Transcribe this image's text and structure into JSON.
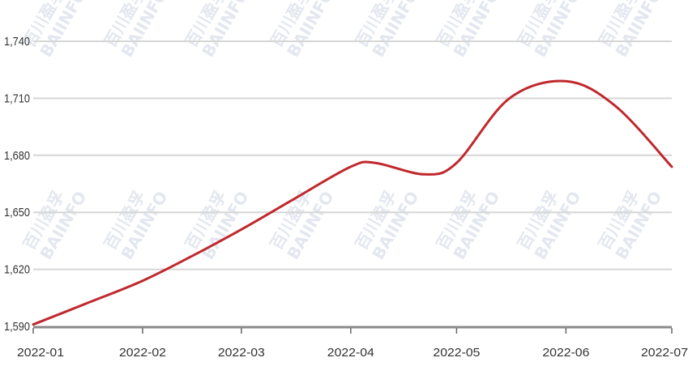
{
  "chart_data": {
    "type": "line",
    "title": "",
    "xlabel": "",
    "ylabel": "",
    "x_ticks": [
      "2022-01",
      "2022-02",
      "2022-03",
      "2022-04",
      "2022-05",
      "2022-06",
      "2022-07"
    ],
    "y_ticks": [
      1590,
      1620,
      1650,
      1680,
      1710,
      1740
    ],
    "y_tick_labels": [
      "1,590",
      "1,620",
      "1,650",
      "1,680",
      "1,710",
      "1,740"
    ],
    "ylim": [
      1590,
      1740
    ],
    "xlim": [
      "2022-01",
      "2022-07"
    ],
    "grid": "horizontal",
    "legend": "none",
    "series": [
      {
        "color": "#c0282d",
        "x": [
          "2022-01",
          "2022-01-16",
          "2022-02",
          "2022-02-15",
          "2022-03",
          "2022-03-15",
          "2022-04",
          "2022-04-08",
          "2022-04-22",
          "2022-05",
          "2022-05-16",
          "2022-06",
          "2022-06-15",
          "2022-07"
        ],
        "y": [
          1591,
          1602,
          1614,
          1627,
          1641,
          1656,
          1674,
          1676,
          1670,
          1676,
          1710,
          1719,
          1706,
          1674
        ]
      }
    ],
    "watermark": [
      "百川盈孚",
      "BAIINFO"
    ]
  }
}
